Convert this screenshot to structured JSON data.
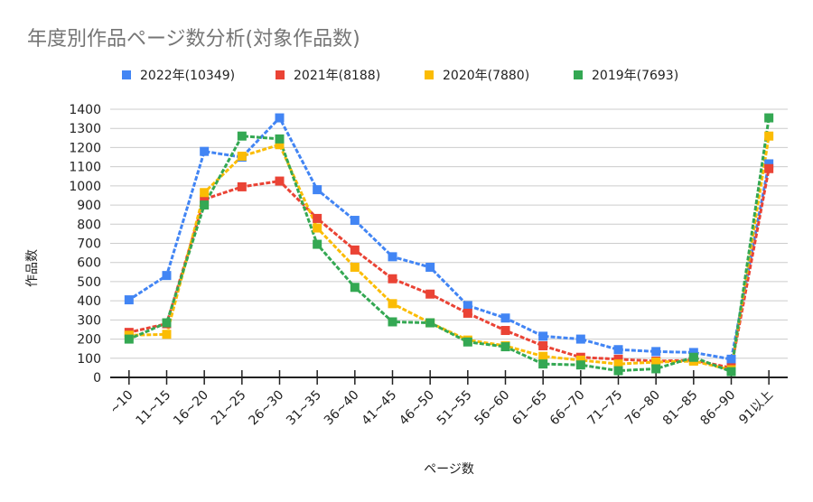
{
  "chart_data": {
    "type": "line",
    "title": "年度別作品ページ数分析(対象作品数)",
    "xlabel": "ページ数",
    "ylabel": "作品数",
    "ylim": [
      0,
      1400
    ],
    "yticks": [
      0,
      100,
      200,
      300,
      400,
      500,
      600,
      700,
      800,
      900,
      1000,
      1100,
      1200,
      1300,
      1400
    ],
    "grid": true,
    "legend_position": "top",
    "line_style": "dotted",
    "marker": "square",
    "categories": [
      "~10",
      "11~15",
      "16~20",
      "21~25",
      "26~30",
      "31~35",
      "36~40",
      "41~45",
      "46~50",
      "51~55",
      "56~60",
      "61~65",
      "66~70",
      "71~75",
      "76~80",
      "81~85",
      "86~90",
      "91以上"
    ],
    "series": [
      {
        "name": "2022年(10349)",
        "color": "#4285f4",
        "values": [
          405,
          532,
          1180,
          1150,
          1355,
          980,
          820,
          630,
          575,
          375,
          310,
          215,
          200,
          145,
          135,
          130,
          95,
          1115
        ]
      },
      {
        "name": "2021年(8188)",
        "color": "#ea4335",
        "values": [
          235,
          280,
          930,
          995,
          1025,
          830,
          665,
          515,
          435,
          335,
          245,
          165,
          105,
          95,
          85,
          90,
          50,
          1090
        ]
      },
      {
        "name": "2020年(7880)",
        "color": "#fbbc04",
        "values": [
          220,
          225,
          965,
          1155,
          1215,
          780,
          575,
          385,
          285,
          195,
          165,
          110,
          90,
          70,
          80,
          85,
          40,
          1260
        ]
      },
      {
        "name": "2019年(7693)",
        "color": "#34a853",
        "values": [
          200,
          285,
          900,
          1260,
          1245,
          695,
          470,
          290,
          285,
          185,
          160,
          70,
          65,
          35,
          45,
          105,
          30,
          1355
        ]
      }
    ]
  }
}
